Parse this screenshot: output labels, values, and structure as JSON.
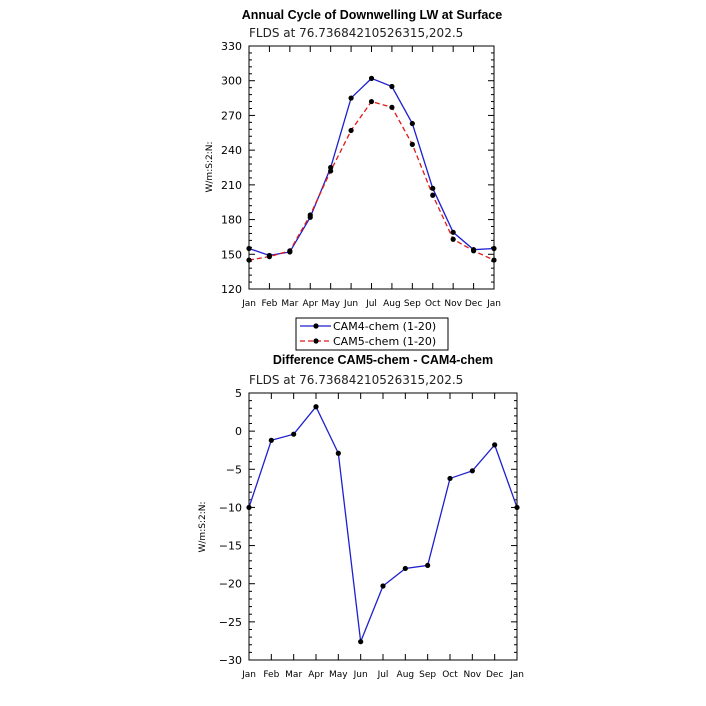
{
  "chart_data": [
    {
      "type": "line",
      "title": "Annual Cycle of Downwelling LW at Surface",
      "subtitle": "FLDS at 76.73684210526315,202.5",
      "ylabel": "W/m:S:2:N:",
      "xlabel": "",
      "categories": [
        "Jan",
        "Feb",
        "Mar",
        "Apr",
        "May",
        "Jun",
        "Jul",
        "Aug",
        "Sep",
        "Oct",
        "Nov",
        "Dec",
        "Jan"
      ],
      "ylim": [
        120,
        330
      ],
      "yticks": [
        120,
        150,
        180,
        210,
        240,
        270,
        300,
        330
      ],
      "legend_position": "bottom-center",
      "series": [
        {
          "name": "CAM4-chem (1-20)",
          "color": "#1f1fcf",
          "dash": "solid",
          "values": [
            155,
            149,
            152,
            182,
            225,
            285,
            302,
            295,
            263,
            207,
            169,
            154,
            155
          ]
        },
        {
          "name": "CAM5-chem (1-20)",
          "color": "#e01818",
          "dash": "dashed",
          "values": [
            145,
            148,
            153,
            184,
            222,
            257,
            282,
            277,
            245,
            201,
            163,
            153,
            145
          ]
        }
      ]
    },
    {
      "type": "line",
      "title": "Difference CAM5-chem - CAM4-chem",
      "subtitle": "FLDS at 76.73684210526315,202.5",
      "ylabel": "W/m:S:2:N:",
      "xlabel": "",
      "categories": [
        "Jan",
        "Feb",
        "Mar",
        "Apr",
        "May",
        "Jun",
        "Jul",
        "Aug",
        "Sep",
        "Oct",
        "Nov",
        "Dec",
        "Jan"
      ],
      "ylim": [
        -30,
        5
      ],
      "yticks": [
        -30,
        -25,
        -20,
        -15,
        -10,
        -5,
        0,
        5
      ],
      "series": [
        {
          "color": "#1f1fcf",
          "dash": "solid",
          "values": [
            -10,
            -1.2,
            -0.4,
            3.2,
            -2.9,
            -27.6,
            -20.3,
            -18,
            -17.6,
            -6.2,
            -5.2,
            -1.8,
            -10
          ]
        }
      ]
    }
  ]
}
